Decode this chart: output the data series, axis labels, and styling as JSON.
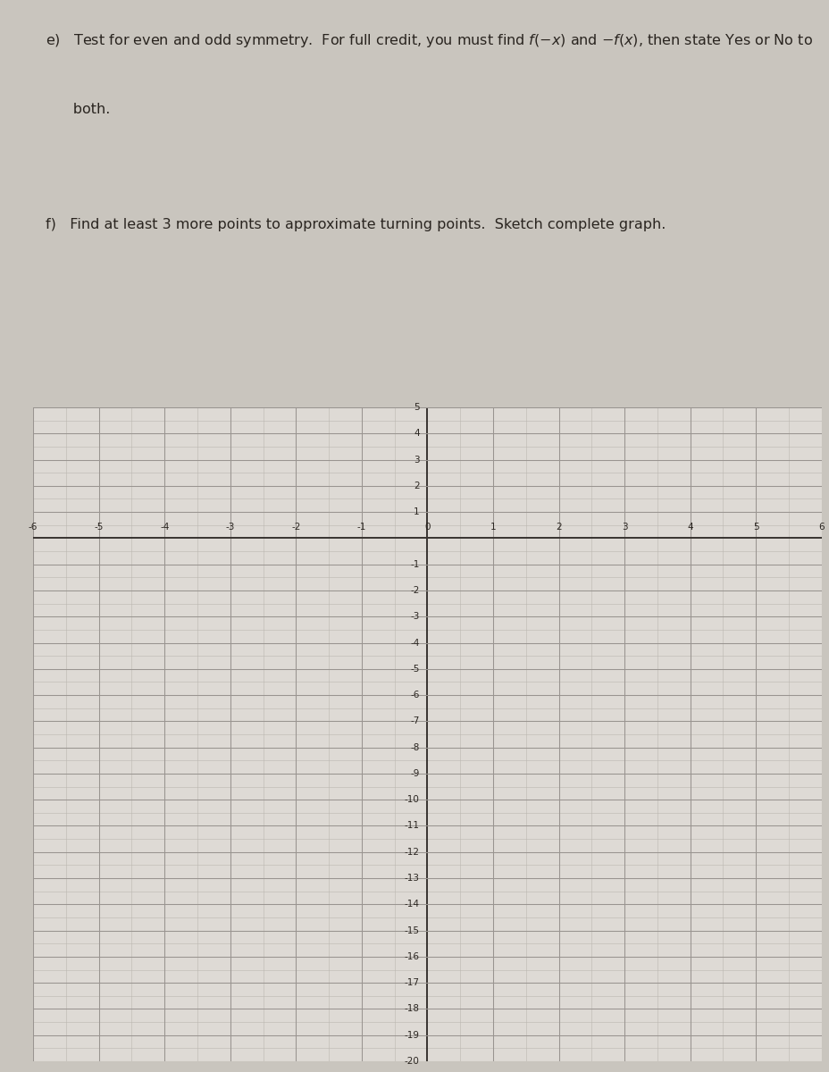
{
  "bg_color": "#c9c5be",
  "grid_bg": "#dedad5",
  "xmin": -6,
  "xmax": 6,
  "ymin": -20,
  "ymax": 5,
  "x_major_ticks": [
    -6,
    -5,
    -4,
    -3,
    -2,
    -1,
    0,
    1,
    2,
    3,
    4,
    5,
    6
  ],
  "y_major_ticks": [
    -20,
    -19,
    -18,
    -17,
    -16,
    -15,
    -14,
    -13,
    -12,
    -11,
    -10,
    -9,
    -8,
    -7,
    -6,
    -5,
    -4,
    -3,
    -2,
    -1,
    0,
    1,
    2,
    3,
    4,
    5
  ],
  "axis_color": "#383330",
  "grid_color_major": "#999490",
  "grid_color_minor": "#bbb7b0",
  "text_color": "#2a2520",
  "font_size_text": 11.5,
  "font_size_tick": 7.5,
  "text_e_line1": "e)   Test for even and odd symmetry.  For full credit, you must find $f(-x)$ and $-f(x)$, then state Yes or No to",
  "text_e_line2": "      both.",
  "text_f": "f)   Find at least 3 more points to approximate turning points.  Sketch complete graph."
}
